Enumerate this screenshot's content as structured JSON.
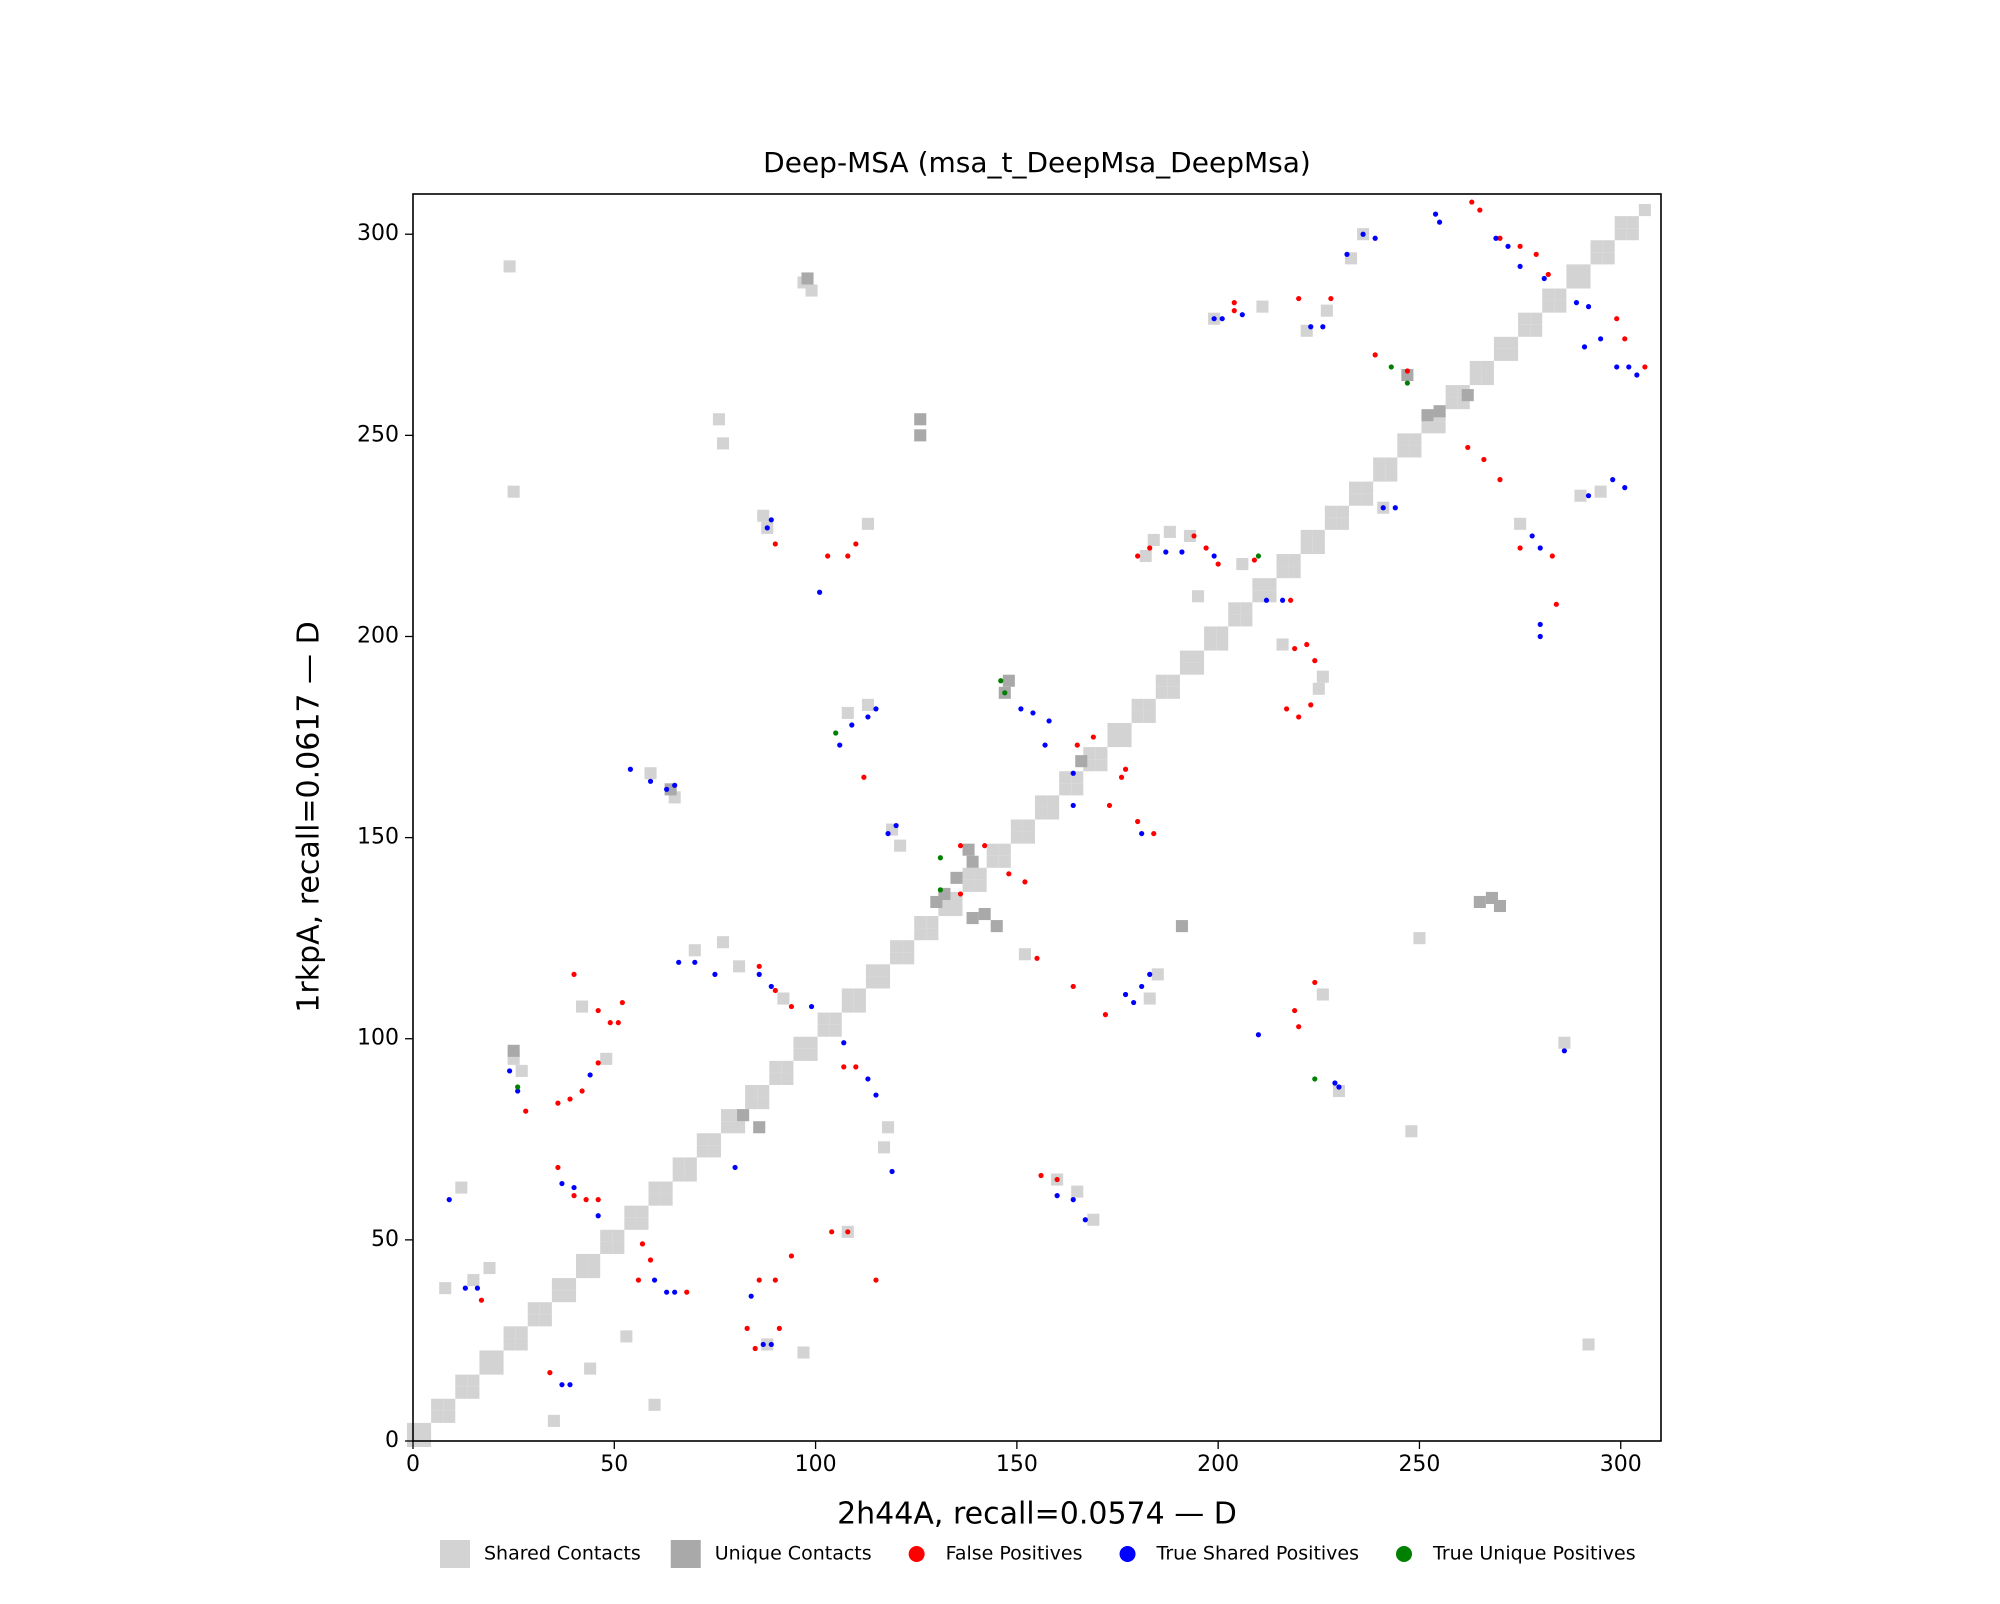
{
  "chart_data": {
    "type": "scatter",
    "title": "Deep-MSA (msa_t_DeepMsa_DeepMsa)",
    "xlabel": "2h44A, recall=0.0574 — D",
    "ylabel": "1rkpA, recall=0.0617 — D",
    "xlim": [
      0,
      310
    ],
    "ylim": [
      0,
      310
    ],
    "xticks": [
      0,
      50,
      100,
      150,
      200,
      250,
      300
    ],
    "yticks": [
      0,
      50,
      100,
      150,
      200,
      250,
      300
    ],
    "grid": false,
    "legend": "bottom",
    "series": [
      {
        "name": "Shared Contacts",
        "color": "#d3d3d3",
        "marker": "square",
        "x": [
          0,
          3,
          6,
          9,
          12,
          15,
          18,
          21,
          24,
          27,
          30,
          33,
          36,
          39,
          42,
          45,
          48,
          51,
          54,
          57,
          60,
          63,
          66,
          69,
          72,
          75,
          78,
          81,
          84,
          87,
          90,
          93,
          96,
          99,
          102,
          105,
          108,
          111,
          114,
          117,
          120,
          123,
          126,
          129,
          132,
          135,
          138,
          141,
          144,
          147,
          150,
          153,
          156,
          159,
          162,
          165,
          168,
          171,
          174,
          177,
          180,
          183,
          186,
          189,
          192,
          195,
          198,
          201,
          204,
          207,
          210,
          213,
          216,
          219,
          222,
          225,
          228,
          231,
          234,
          237,
          240,
          243,
          246,
          249,
          252,
          255,
          258,
          261,
          264,
          267,
          270,
          273,
          276,
          279,
          282,
          285,
          288,
          291,
          294,
          297,
          300,
          303,
          306,
          3,
          9,
          15,
          21,
          27,
          33,
          39,
          45,
          51,
          57,
          63,
          69,
          75,
          81,
          87,
          93,
          99,
          105,
          111,
          117,
          123,
          129,
          135,
          141,
          147,
          153,
          159,
          165,
          171,
          177,
          183,
          189,
          195,
          201,
          207,
          213,
          219,
          225,
          231,
          237,
          243,
          249,
          255,
          261,
          267,
          273,
          279,
          285,
          291,
          297,
          303,
          0,
          6,
          12,
          18,
          24,
          30,
          36,
          42,
          48,
          54,
          60,
          66,
          72,
          78,
          84,
          90,
          96,
          102,
          108,
          114,
          120,
          126,
          132,
          138,
          144,
          150,
          156,
          162,
          168,
          174,
          180,
          186,
          192,
          198,
          204,
          210,
          216,
          222,
          228,
          234,
          240,
          246,
          252,
          258,
          264,
          270,
          276,
          282,
          288,
          294,
          300,
          24,
          25,
          97,
          99,
          76,
          77,
          87,
          88,
          113,
          184,
          188,
          193,
          233,
          236,
          199,
          222,
          227,
          275,
          290,
          295,
          241,
          108,
          113,
          59,
          65,
          119,
          121,
          70,
          77,
          81,
          92,
          152,
          185,
          183,
          226,
          250,
          230,
          248,
          286,
          12,
          15,
          19,
          8,
          25,
          27,
          118,
          117,
          60,
          97,
          88,
          44,
          35,
          225,
          226,
          160,
          165,
          169,
          42,
          48,
          211,
          53,
          292,
          108,
          182,
          195,
          216,
          206
        ],
        "y": [
          0,
          3,
          6,
          9,
          12,
          15,
          18,
          21,
          24,
          27,
          30,
          33,
          36,
          39,
          42,
          45,
          48,
          51,
          54,
          57,
          60,
          63,
          66,
          69,
          72,
          75,
          78,
          81,
          84,
          87,
          90,
          93,
          96,
          99,
          102,
          105,
          108,
          111,
          114,
          117,
          120,
          123,
          126,
          129,
          132,
          135,
          138,
          141,
          144,
          147,
          150,
          153,
          156,
          159,
          162,
          165,
          168,
          171,
          174,
          177,
          180,
          183,
          186,
          189,
          192,
          195,
          198,
          201,
          204,
          207,
          210,
          213,
          216,
          219,
          222,
          225,
          228,
          231,
          234,
          237,
          240,
          243,
          246,
          249,
          252,
          255,
          258,
          261,
          264,
          267,
          270,
          273,
          276,
          279,
          282,
          285,
          288,
          291,
          294,
          297,
          300,
          303,
          306,
          0,
          6,
          12,
          18,
          24,
          30,
          36,
          42,
          48,
          54,
          60,
          66,
          72,
          78,
          84,
          90,
          96,
          102,
          108,
          114,
          120,
          126,
          132,
          138,
          144,
          150,
          156,
          162,
          168,
          174,
          180,
          186,
          192,
          198,
          204,
          210,
          216,
          222,
          228,
          234,
          240,
          246,
          252,
          258,
          264,
          270,
          276,
          282,
          288,
          294,
          300,
          3,
          9,
          15,
          21,
          27,
          33,
          39,
          45,
          51,
          57,
          63,
          69,
          75,
          81,
          87,
          93,
          99,
          105,
          111,
          117,
          123,
          129,
          135,
          141,
          147,
          153,
          159,
          165,
          171,
          177,
          183,
          189,
          195,
          201,
          207,
          213,
          219,
          225,
          231,
          237,
          243,
          249,
          255,
          261,
          267,
          273,
          279,
          285,
          291,
          297,
          303,
          292,
          236,
          288,
          286,
          254,
          248,
          230,
          227,
          228,
          224,
          226,
          225,
          294,
          300,
          279,
          276,
          281,
          228,
          235,
          236,
          232,
          181,
          183,
          166,
          160,
          152,
          148,
          122,
          124,
          118,
          110,
          121,
          116,
          110,
          111,
          125,
          87,
          77,
          99,
          63,
          40,
          43,
          38,
          95,
          92,
          78,
          73,
          9,
          22,
          24,
          18,
          5,
          187,
          190,
          65,
          62,
          55,
          108,
          95,
          282,
          26,
          24,
          52,
          220,
          210,
          198,
          218
        ]
      },
      {
        "name": "Unique Contacts",
        "color": "#a9a9a9",
        "marker": "square",
        "x": [
          126,
          126,
          98,
          268,
          270,
          265,
          145,
          142,
          139,
          147,
          148,
          191,
          247,
          252,
          255,
          139,
          138,
          130,
          25,
          82,
          86,
          64,
          135,
          132,
          262,
          166
        ],
        "y": [
          254,
          250,
          289,
          135,
          133,
          134,
          128,
          131,
          130,
          186,
          189,
          128,
          265,
          255,
          256,
          144,
          147,
          134,
          97,
          81,
          78,
          162,
          140,
          136,
          260,
          169
        ]
      },
      {
        "name": "False Positives",
        "color": "#ff0000",
        "marker": "circle",
        "x": [
          263,
          265,
          270,
          275,
          279,
          282,
          299,
          301,
          306,
          247,
          239,
          228,
          220,
          204,
          204,
          262,
          266,
          270,
          275,
          283,
          284,
          218,
          219,
          222,
          224,
          217,
          220,
          223,
          180,
          183,
          194,
          197,
          200,
          209,
          165,
          169,
          177,
          173,
          180,
          184,
          176,
          103,
          108,
          110,
          90,
          112,
          136,
          142,
          148,
          152,
          136,
          155,
          164,
          172,
          40,
          46,
          51,
          52,
          49,
          86,
          90,
          94,
          39,
          36,
          42,
          46,
          110,
          107,
          36,
          40,
          43,
          46,
          57,
          59,
          68,
          56,
          86,
          90,
          94,
          104,
          108,
          115,
          34,
          17,
          28,
          219,
          220,
          224,
          156,
          160,
          83,
          85,
          91
        ],
        "y": [
          308,
          306,
          299,
          297,
          295,
          290,
          279,
          274,
          267,
          266,
          270,
          284,
          284,
          283,
          281,
          247,
          244,
          239,
          222,
          220,
          208,
          209,
          197,
          198,
          194,
          182,
          180,
          183,
          220,
          222,
          225,
          222,
          218,
          219,
          173,
          175,
          167,
          158,
          154,
          151,
          165,
          220,
          220,
          223,
          223,
          165,
          148,
          148,
          141,
          139,
          136,
          120,
          113,
          106,
          116,
          107,
          104,
          109,
          104,
          118,
          112,
          108,
          85,
          84,
          87,
          94,
          93,
          93,
          68,
          61,
          60,
          60,
          49,
          45,
          37,
          40,
          40,
          40,
          46,
          52,
          52,
          40,
          17,
          35,
          82,
          107,
          103,
          114,
          66,
          65,
          28,
          23,
          28
        ]
      },
      {
        "name": "True Shared Positives",
        "color": "#0000ff",
        "marker": "circle",
        "x": [
          254,
          255,
          269,
          272,
          275,
          281,
          289,
          292,
          295,
          302,
          299,
          304,
          236,
          239,
          232,
          223,
          226,
          199,
          201,
          206,
          298,
          301,
          292,
          241,
          244,
          278,
          280,
          280,
          280,
          101,
          89,
          88,
          191,
          187,
          199,
          216,
          212,
          151,
          154,
          158,
          157,
          164,
          164,
          115,
          113,
          109,
          106,
          120,
          118,
          181,
          54,
          59,
          63,
          65,
          66,
          70,
          75,
          86,
          89,
          99,
          107,
          177,
          179,
          181,
          183,
          210,
          24,
          26,
          44,
          113,
          115,
          37,
          40,
          46,
          9,
          13,
          16,
          60,
          63,
          65,
          80,
          119,
          160,
          164,
          167,
          87,
          89,
          39,
          37,
          84,
          229,
          230,
          291,
          286
        ],
        "y": [
          305,
          303,
          299,
          297,
          292,
          289,
          283,
          282,
          274,
          267,
          267,
          265,
          300,
          299,
          295,
          277,
          277,
          279,
          279,
          280,
          239,
          237,
          235,
          232,
          232,
          225,
          222,
          203,
          200,
          211,
          229,
          227,
          221,
          221,
          220,
          209,
          209,
          182,
          181,
          179,
          173,
          166,
          158,
          182,
          180,
          178,
          173,
          153,
          151,
          151,
          167,
          164,
          162,
          163,
          119,
          119,
          116,
          116,
          113,
          108,
          99,
          111,
          109,
          113,
          116,
          101,
          92,
          87,
          91,
          90,
          86,
          64,
          63,
          56,
          60,
          38,
          38,
          40,
          37,
          37,
          68,
          67,
          61,
          60,
          55,
          24,
          24,
          14,
          14,
          36,
          89,
          88,
          272,
          97
        ]
      },
      {
        "name": "True Unique Positives",
        "color": "#008000",
        "marker": "circle",
        "x": [
          243,
          247,
          210,
          146,
          147,
          105,
          131,
          131,
          26,
          224
        ],
        "y": [
          267,
          263,
          220,
          189,
          186,
          176,
          145,
          137,
          88,
          90
        ]
      }
    ]
  }
}
